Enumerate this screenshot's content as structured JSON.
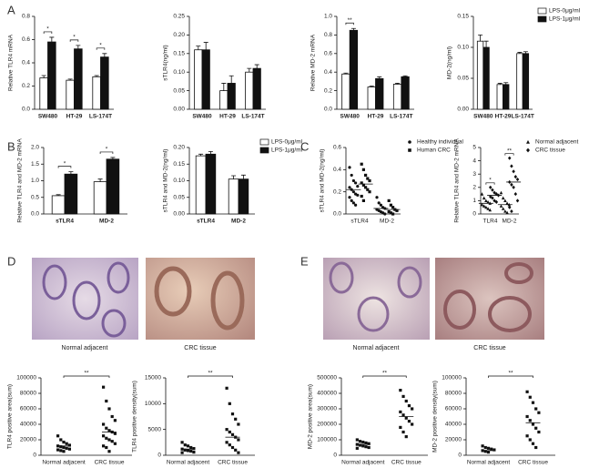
{
  "panel_labels": [
    "A",
    "B",
    "C",
    "D",
    "E"
  ],
  "images": [
    {
      "caption": "Normal adjacent"
    },
    {
      "caption": "CRC tissue"
    },
    {
      "caption": "Normal adjacent"
    },
    {
      "caption": "CRC tissue"
    }
  ],
  "chart_data": [
    {
      "type": "bar",
      "ylabel": "Relative TLR4 mRNA",
      "categories": [
        "SW480",
        "HT-29",
        "LS-174T"
      ],
      "ylim": [
        0,
        0.8
      ],
      "yticks": [
        {
          "value": 0,
          "label": "0.0"
        },
        0.2,
        0.4,
        0.6,
        0.8
      ],
      "series": [
        {
          "name": "LPS-0μg/ml",
          "color": "#ffffff",
          "values": [
            0.27,
            0.25,
            0.28
          ],
          "errors": [
            0.02,
            0.01,
            0.01
          ]
        },
        {
          "name": "LPS-1μg/ml",
          "color": "#111111",
          "values": [
            0.58,
            0.52,
            0.45
          ],
          "errors": [
            0.04,
            0.03,
            0.03
          ]
        }
      ],
      "significance": [
        "*",
        "*",
        "*"
      ]
    },
    {
      "type": "bar",
      "ylabel": "sTLR4(ng/ml)",
      "categories": [
        "SW480",
        "HT-29",
        "LS-174T"
      ],
      "ylim": [
        0,
        0.25
      ],
      "yticks": [
        {
          "value": 0,
          "label": "0.00"
        },
        0.05,
        {
          "value": 0.1,
          "label": "0.10"
        },
        0.15,
        {
          "value": 0.2,
          "label": "0.20"
        },
        0.25
      ],
      "series": [
        {
          "name": "LPS-0μg/ml",
          "color": "#ffffff",
          "values": [
            0.16,
            0.05,
            0.1
          ],
          "errors": [
            0.01,
            0.02,
            0.01
          ]
        },
        {
          "name": "LPS-1μg/ml",
          "color": "#111111",
          "values": [
            0.16,
            0.07,
            0.11
          ],
          "errors": [
            0.02,
            0.02,
            0.01
          ]
        }
      ]
    },
    {
      "type": "bar",
      "ylabel": "Relative MD-2 mRNA",
      "categories": [
        "SW480",
        "HT-29",
        "LS-174T"
      ],
      "ylim": [
        0,
        1
      ],
      "yticks": [
        {
          "value": 0,
          "label": "0.0"
        },
        0.2,
        0.4,
        0.6,
        0.8,
        {
          "value": 1,
          "label": "1.0"
        }
      ],
      "series": [
        {
          "name": "LPS-0μg/ml",
          "color": "#ffffff",
          "values": [
            0.38,
            0.24,
            0.27
          ],
          "errors": [
            0.01,
            0.01,
            0.01
          ]
        },
        {
          "name": "LPS-1μg/ml",
          "color": "#111111",
          "values": [
            0.85,
            0.33,
            0.35
          ],
          "errors": [
            0.02,
            0.02,
            0.01
          ]
        }
      ],
      "significance": [
        "**",
        null,
        null
      ]
    },
    {
      "type": "bar",
      "ylabel": "MD-2(ng/ml)",
      "categories": [
        "SW480",
        "HT-29",
        "LS-174T"
      ],
      "ylim": [
        0,
        0.15
      ],
      "yticks": [
        {
          "value": 0,
          "label": "0.00"
        },
        0.05,
        {
          "value": 0.1,
          "label": "0.10"
        },
        0.15
      ],
      "legend": "right",
      "series": [
        {
          "name": "LPS-0μg/ml",
          "color": "#ffffff",
          "values": [
            0.11,
            0.04,
            0.09
          ],
          "errors": [
            0.01,
            0.002,
            0.002
          ]
        },
        {
          "name": "LPS-1μg/ml",
          "color": "#111111",
          "values": [
            0.1,
            0.04,
            0.09
          ],
          "errors": [
            0.01,
            0.003,
            0.003
          ]
        }
      ]
    },
    {
      "type": "bar",
      "ylabel": "Relative TLR4 and MD-2 mRNA",
      "categories": [
        "sTLR4",
        "MD-2"
      ],
      "ylim": [
        0,
        2
      ],
      "yticks": [
        {
          "value": 0,
          "label": "0.0"
        },
        0.5,
        {
          "value": 1,
          "label": "1.0"
        },
        1.5,
        {
          "value": 2,
          "label": "2.0"
        }
      ],
      "series": [
        {
          "name": "LPS-0μg/ml",
          "color": "#ffffff",
          "values": [
            0.55,
            0.97
          ],
          "errors": [
            0.03,
            0.08
          ]
        },
        {
          "name": "LPS-1μg/ml",
          "color": "#111111",
          "values": [
            1.2,
            1.65
          ],
          "errors": [
            0.07,
            0.05
          ]
        }
      ],
      "significance": [
        "*",
        "*"
      ]
    },
    {
      "type": "bar",
      "ylabel": "sTLR4 and MD-2(ng/ml)",
      "categories": [
        "sTLR4",
        "MD-2"
      ],
      "ylim": [
        0,
        0.2
      ],
      "legend": "right",
      "yticks": [
        {
          "value": 0,
          "label": "0.00"
        },
        0.05,
        {
          "value": 0.1,
          "label": "0.10"
        },
        0.15,
        {
          "value": 0.2,
          "label": "0.20"
        }
      ],
      "series": [
        {
          "name": "LPS-0μg/ml",
          "color": "#ffffff",
          "values": [
            0.175,
            0.105
          ],
          "errors": [
            0.005,
            0.01
          ]
        },
        {
          "name": "LPS-1μg/ml",
          "color": "#111111",
          "values": [
            0.18,
            0.105
          ],
          "errors": [
            0.008,
            0.012
          ]
        }
      ]
    },
    {
      "type": "scatter",
      "ylabel": "sTLR4 and MD-2(ng/ml)",
      "categories": [
        "sTLR4",
        "MD-2"
      ],
      "ylim": [
        0,
        0.6
      ],
      "legend": "right",
      "yticks": [
        {
          "value": 0,
          "label": "0.0"
        },
        0.2,
        0.4,
        0.6
      ],
      "series": [
        {
          "name": "Healthy individual",
          "marker": "circle",
          "values": [
            [
              0.42,
              0.35,
              0.3,
              0.28,
              0.25,
              0.24,
              0.22,
              0.2,
              0.18,
              0.17,
              0.15,
              0.12,
              0.1,
              0.08
            ],
            [
              0.15,
              0.1,
              0.08,
              0.06,
              0.05,
              0.04,
              0.03,
              0.02,
              0.01,
              0
            ]
          ],
          "means": [
            0.22,
            0.05
          ]
        },
        {
          "name": "Human CRC",
          "marker": "square",
          "values": [
            [
              0.45,
              0.4,
              0.35,
              0.32,
              0.3,
              0.28,
              0.26,
              0.24,
              0.22,
              0.2,
              0.16,
              0.12
            ],
            [
              0.12,
              0.08,
              0.06,
              0.04,
              0.03,
              0.02,
              0.01,
              0
            ]
          ],
          "means": [
            0.27,
            0.04
          ]
        }
      ]
    },
    {
      "type": "scatter",
      "ylabel": "Relative TLR4 and MD-2 mRNA",
      "categories": [
        "TLR4",
        "MD-2"
      ],
      "ylim": [
        0,
        5
      ],
      "legend": "right",
      "yticks": [
        0,
        1,
        2,
        3,
        4,
        5
      ],
      "significance": [
        "*",
        "**"
      ],
      "series": [
        {
          "name": "Normal adjacent",
          "marker": "triangle",
          "values": [
            [
              1.5,
              1.2,
              1,
              0.9,
              0.8,
              0.7,
              0.6,
              0.5,
              0.4,
              0.3
            ],
            [
              1.6,
              1.2,
              1,
              0.8,
              0.7,
              0.6,
              0.4,
              0.2,
              0.1
            ]
          ],
          "means": [
            0.8,
            0.7
          ]
        },
        {
          "name": "CRC tissue",
          "marker": "diamond",
          "values": [
            [
              2,
              1.8,
              1.6,
              1.5,
              1.4,
              1.3,
              1.2,
              1,
              0.9
            ],
            [
              4.2,
              3.6,
              3.2,
              2.8,
              2.6,
              2.4,
              2.2,
              2,
              1.5,
              1,
              0.5,
              0.2
            ]
          ],
          "means": [
            1.4,
            2.4
          ]
        }
      ]
    },
    {
      "type": "scatter",
      "ylabel": "TLR4 positive area(sum)",
      "categories": [
        "Normal adjacent",
        "CRC tissue"
      ],
      "ylim": [
        0,
        100000
      ],
      "yticks": [
        0,
        20000,
        40000,
        60000,
        80000,
        100000
      ],
      "significance": "**",
      "series": [
        {
          "marker": "square",
          "values": [
            [
              25000,
              20000,
              17000,
              15000,
              13000,
              12000,
              11000,
              10000,
              9000,
              8000,
              7000,
              6000,
              5000
            ],
            [
              88000,
              70000,
              60000,
              50000,
              45000,
              40000,
              35000,
              32000,
              30000,
              28000,
              25000,
              22000,
              20000,
              18000,
              15000,
              12000,
              10000,
              5000
            ]
          ],
          "means": [
            12000,
            30000
          ]
        }
      ]
    },
    {
      "type": "scatter",
      "ylabel": "TLR4 positive density(sum)",
      "categories": [
        "Normal adjacent",
        "CRC tissue"
      ],
      "ylim": [
        0,
        15000
      ],
      "yticks": [
        0,
        5000,
        10000,
        15000
      ],
      "significance": "**",
      "series": [
        {
          "marker": "square",
          "values": [
            [
              2500,
              2000,
              1800,
              1500,
              1300,
              1200,
              1000,
              900,
              800,
              600,
              500
            ],
            [
              13000,
              10000,
              8000,
              7000,
              6000,
              5000,
              4500,
              4000,
              3500,
              3000,
              2500,
              2000,
              1500,
              1000,
              500
            ]
          ],
          "means": [
            1200,
            3500
          ]
        }
      ]
    },
    {
      "type": "scatter",
      "ylabel": "MD-2 positive area(sum)",
      "categories": [
        "Normal adjacent",
        "CRC tissue"
      ],
      "ylim": [
        0,
        500000
      ],
      "yticks": [
        0,
        100000,
        200000,
        300000,
        400000,
        500000
      ],
      "significance": "**",
      "series": [
        {
          "marker": "square",
          "values": [
            [
              100000,
              90000,
              85000,
              80000,
              75000,
              70000,
              65000,
              60000,
              55000,
              50000,
              45000
            ],
            [
              420000,
              380000,
              350000,
              320000,
              300000,
              280000,
              260000,
              240000,
              220000,
              200000,
              180000,
              150000,
              120000
            ]
          ],
          "means": [
            70000,
            250000
          ]
        }
      ]
    },
    {
      "type": "scatter",
      "ylabel": "MD-2 positive density(sum)",
      "categories": [
        "Normal adjacent",
        "CRC tissue"
      ],
      "ylim": [
        0,
        100000
      ],
      "yticks": [
        0,
        20000,
        40000,
        60000,
        80000,
        100000
      ],
      "significance": "**",
      "series": [
        {
          "marker": "square",
          "values": [
            [
              12000,
              10000,
              9000,
              8000,
              7000,
              6000,
              5000,
              4000
            ],
            [
              82000,
              75000,
              68000,
              60000,
              55000,
              50000,
              45000,
              40000,
              35000,
              30000,
              25000,
              20000,
              15000,
              10000
            ]
          ],
          "means": [
            6000,
            42000
          ]
        }
      ]
    }
  ]
}
